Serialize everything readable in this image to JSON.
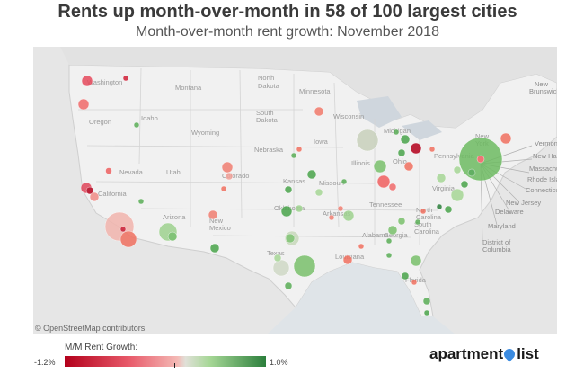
{
  "title": "Rents up month-over-month in 58 of 100 largest cities",
  "subtitle": "Month-over-month rent growth: November 2018",
  "attribution": "© OpenStreetMap contributors",
  "legend": {
    "title": "M/M Rent Growth:",
    "min_label": "-1.2%",
    "max_label": "1.0%",
    "colors": [
      "#b3001b",
      "#e85a6a",
      "#f4b9b5",
      "#e0e0d8",
      "#a6d796",
      "#2c7f3c"
    ]
  },
  "brand": {
    "text_before": "apartment",
    "text_after": "list",
    "icon": "location-pin-icon"
  },
  "map_labels": {
    "states": [
      "Washington",
      "Montana",
      "North Dakota",
      "Minnesota",
      "Oregon",
      "Idaho",
      "South Dakota",
      "Wisconsin",
      "Michigan",
      "Wyoming",
      "Nebraska",
      "Iowa",
      "New York",
      "Pennsylvania",
      "Nevada",
      "Utah",
      "Colorado",
      "Kansas",
      "Missouri",
      "Illinois",
      "Ohio",
      "Virginia",
      "California",
      "Oklahoma",
      "Arkansas",
      "Tennessee",
      "North Carolina",
      "South Carolina",
      "Arizona",
      "New Mexico",
      "Texas",
      "Louisiana",
      "Alabama",
      "Georgia",
      "Florida"
    ],
    "callouts": [
      "New Hampshire",
      "Massachusetts",
      "Rhode Island",
      "Connecticut",
      "New Jersey",
      "Delaware",
      "Maryland",
      "District of Columbia",
      "Vermont",
      "New Brunswick"
    ]
  },
  "chart_data": {
    "type": "bubble-map",
    "title": "Rents up month-over-month in 58 of 100 largest cities",
    "subtitle": "Month-over-month rent growth: November 2018",
    "color_scale": {
      "min": -1.2,
      "max": 1.0,
      "unit": "%"
    },
    "cities_with_increase": 58,
    "cities_total": 100
  }
}
